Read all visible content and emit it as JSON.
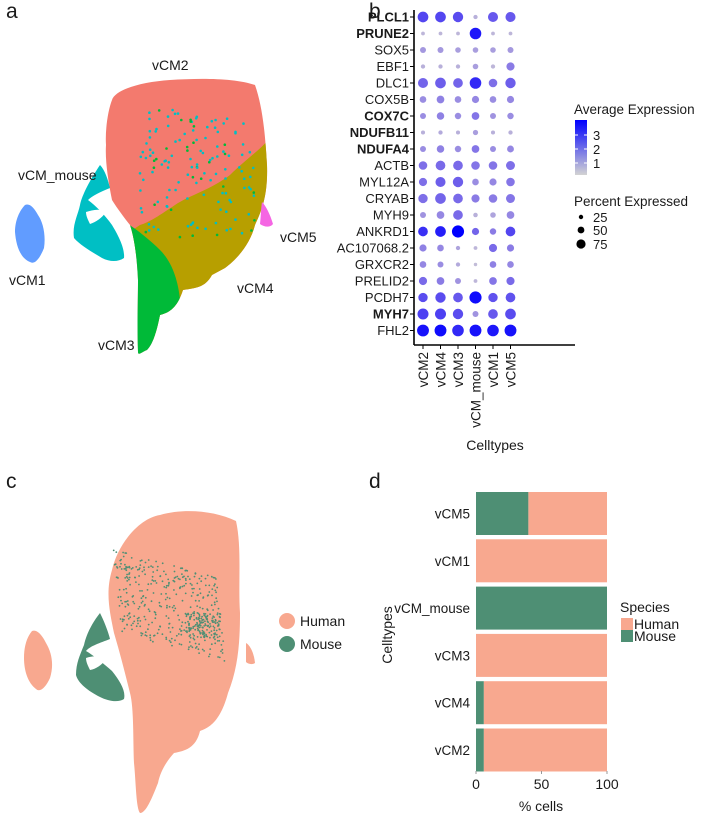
{
  "panels": {
    "a": {
      "letter": "a"
    },
    "b": {
      "letter": "b"
    },
    "c": {
      "letter": "c"
    },
    "d": {
      "letter": "d"
    }
  },
  "chart_data": [
    {
      "panel": "a",
      "type": "scatter",
      "title": "",
      "description": "UMAP of ventricular cardiomyocyte clusters",
      "clusters": [
        {
          "name": "vCM2",
          "color": "#F37A6E"
        },
        {
          "name": "vCM_mouse",
          "color": "#00BFC4"
        },
        {
          "name": "vCM5",
          "color": "#F566E3"
        },
        {
          "name": "vCM1",
          "color": "#619CFF"
        },
        {
          "name": "vCM4",
          "color": "#B79F00"
        },
        {
          "name": "vCM3",
          "color": "#00BA38"
        }
      ],
      "cluster_labels": [
        "vCM2",
        "vCM_mouse",
        "vCM5",
        "vCM1",
        "vCM4",
        "vCM3"
      ]
    },
    {
      "panel": "b",
      "type": "scatter",
      "subtype": "dotplot",
      "xlabel": "Celltypes",
      "ylabel": "",
      "categories": [
        "vCM2",
        "vCM4",
        "vCM3",
        "vCM_mouse",
        "vCM1",
        "vCM5"
      ],
      "genes": [
        {
          "name": "PLCL1",
          "bold": true
        },
        {
          "name": "PRUNE2",
          "bold": true
        },
        {
          "name": "SOX5",
          "bold": false
        },
        {
          "name": "EBF1",
          "bold": false
        },
        {
          "name": "DLC1",
          "bold": false
        },
        {
          "name": "COX5B",
          "bold": false
        },
        {
          "name": "COX7C",
          "bold": true
        },
        {
          "name": "NDUFB11",
          "bold": true
        },
        {
          "name": "NDUFA4",
          "bold": true
        },
        {
          "name": "ACTB",
          "bold": false
        },
        {
          "name": "MYL12A",
          "bold": false
        },
        {
          "name": "CRYAB",
          "bold": false
        },
        {
          "name": "MYH9",
          "bold": false
        },
        {
          "name": "ANKRD1",
          "bold": false
        },
        {
          "name": "AC107068.2",
          "bold": false
        },
        {
          "name": "GRXCR2",
          "bold": false
        },
        {
          "name": "PRELID2",
          "bold": false
        },
        {
          "name": "PCDH7",
          "bold": false
        },
        {
          "name": "MYH7",
          "bold": true
        },
        {
          "name": "FHL2",
          "bold": false
        }
      ],
      "pct_expressed": [
        [
          70,
          70,
          65,
          5,
          60,
          60
        ],
        [
          3,
          3,
          3,
          85,
          3,
          3
        ],
        [
          15,
          15,
          12,
          12,
          12,
          15
        ],
        [
          5,
          5,
          5,
          12,
          5,
          35
        ],
        [
          60,
          70,
          55,
          85,
          40,
          65
        ],
        [
          20,
          30,
          20,
          25,
          20,
          25
        ],
        [
          15,
          28,
          18,
          30,
          15,
          18
        ],
        [
          4,
          5,
          4,
          10,
          4,
          5
        ],
        [
          15,
          28,
          18,
          30,
          15,
          22
        ],
        [
          40,
          55,
          55,
          40,
          40,
          45
        ],
        [
          35,
          60,
          65,
          20,
          25,
          40
        ],
        [
          50,
          70,
          55,
          35,
          40,
          45
        ],
        [
          15,
          30,
          55,
          6,
          12,
          30
        ],
        [
          55,
          70,
          95,
          25,
          18,
          55
        ],
        [
          25,
          20,
          5,
          3,
          35,
          25
        ],
        [
          20,
          15,
          5,
          2,
          20,
          20
        ],
        [
          35,
          30,
          15,
          3,
          30,
          35
        ],
        [
          50,
          65,
          55,
          95,
          50,
          55
        ],
        [
          75,
          75,
          65,
          15,
          55,
          70
        ],
        [
          90,
          90,
          85,
          90,
          85,
          90
        ]
      ],
      "avg_expression": [
        [
          2.4,
          2.4,
          2.3,
          0.6,
          2.1,
          2.1
        ],
        [
          0.5,
          0.5,
          0.5,
          3.2,
          0.5,
          0.5
        ],
        [
          1.0,
          1.0,
          0.9,
          0.9,
          0.9,
          1.0
        ],
        [
          0.6,
          0.6,
          0.6,
          0.9,
          0.5,
          1.5
        ],
        [
          1.9,
          2.0,
          1.9,
          2.9,
          1.7,
          2.0
        ],
        [
          1.2,
          1.4,
          1.2,
          1.3,
          1.2,
          1.3
        ],
        [
          1.2,
          1.4,
          1.2,
          1.6,
          1.1,
          1.2
        ],
        [
          0.6,
          0.7,
          0.6,
          0.9,
          0.6,
          0.6
        ],
        [
          1.2,
          1.4,
          1.2,
          1.6,
          1.2,
          1.3
        ],
        [
          1.7,
          1.8,
          1.8,
          1.6,
          1.6,
          1.7
        ],
        [
          1.7,
          2.0,
          2.0,
          1.2,
          1.3,
          1.6
        ],
        [
          1.7,
          1.9,
          1.8,
          1.5,
          1.5,
          1.6
        ],
        [
          1.1,
          1.3,
          1.8,
          0.6,
          0.8,
          1.3
        ],
        [
          2.8,
          3.1,
          3.6,
          1.9,
          1.5,
          2.4
        ],
        [
          1.4,
          1.3,
          0.8,
          0.5,
          1.8,
          1.5
        ],
        [
          1.3,
          1.2,
          0.7,
          0.4,
          1.4,
          1.3
        ],
        [
          1.8,
          1.5,
          1.1,
          0.5,
          1.6,
          1.8
        ],
        [
          2.3,
          2.3,
          2.1,
          3.4,
          2.2,
          2.2
        ],
        [
          2.5,
          2.5,
          2.3,
          1.1,
          2.1,
          2.3
        ],
        [
          3.3,
          3.4,
          2.9,
          3.3,
          3.2,
          3.3
        ]
      ],
      "legend_color": {
        "title": "Average Expression",
        "ticks": [
          "3",
          "2",
          "1"
        ],
        "low": "#D3D3D3",
        "high": "#0000FF"
      },
      "legend_size": {
        "title": "Percent Expressed",
        "ticks": [
          "25",
          "50",
          "75"
        ]
      },
      "legend_placement": "right"
    },
    {
      "panel": "c",
      "type": "scatter",
      "description": "UMAP colored by species",
      "legend": [
        {
          "name": "Human",
          "color": "#F8A88F"
        },
        {
          "name": "Mouse",
          "color": "#4E8F74"
        }
      ],
      "legend_placement": "right"
    },
    {
      "panel": "d",
      "type": "bar",
      "orientation": "horizontal",
      "stacked": true,
      "xlabel": "% cells",
      "ylabel": "Celltypes",
      "categories": [
        "vCM5",
        "vCM1",
        "vCM_mouse",
        "vCM3",
        "vCM4",
        "vCM2"
      ],
      "series": [
        {
          "name": "Mouse",
          "color": "#4E8F74",
          "values": [
            40,
            0,
            100,
            0,
            6,
            6
          ]
        },
        {
          "name": "Human",
          "color": "#F8A88F",
          "values": [
            60,
            100,
            0,
            100,
            94,
            94
          ]
        }
      ],
      "xticks": [
        "0",
        "50",
        "100"
      ],
      "xlim": [
        0,
        100
      ],
      "legend_title": "Species",
      "legend_entries": [
        "Human",
        "Mouse"
      ],
      "legend_placement": "right"
    }
  ]
}
